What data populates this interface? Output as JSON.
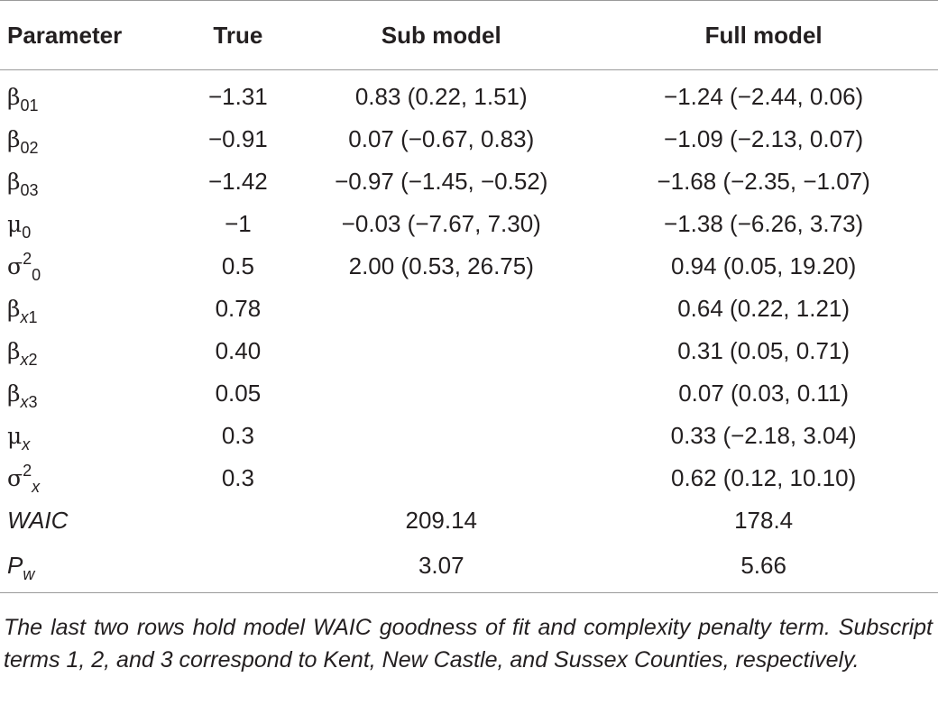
{
  "table": {
    "headers": {
      "parameter": "Parameter",
      "true": "True",
      "sub": "Sub model",
      "full": "Full model"
    },
    "rows": [
      {
        "sym": "β",
        "sup": "",
        "sub": "01",
        "sub_italic": false,
        "true": "−1.31",
        "submodel": "0.83 (0.22, 1.51)",
        "fullmodel": "−1.24 (−2.44, 0.06)"
      },
      {
        "sym": "β",
        "sup": "",
        "sub": "02",
        "sub_italic": false,
        "true": "−0.91",
        "submodel": "0.07 (−0.67, 0.83)",
        "fullmodel": "−1.09 (−2.13, 0.07)"
      },
      {
        "sym": "β",
        "sup": "",
        "sub": "03",
        "sub_italic": false,
        "true": "−1.42",
        "submodel": "−0.97 (−1.45, −0.52)",
        "fullmodel": "−1.68 (−2.35, −1.07)"
      },
      {
        "sym": "μ",
        "sup": "",
        "sub": "0",
        "sub_italic": false,
        "true": "−1",
        "submodel": "−0.03 (−7.67, 7.30)",
        "fullmodel": "−1.38 (−6.26, 3.73)"
      },
      {
        "sym": "σ",
        "sup": "2",
        "sub": "0",
        "sub_italic": false,
        "true": "0.5",
        "submodel": "2.00 (0.53, 26.75)",
        "fullmodel": "0.94 (0.05, 19.20)"
      },
      {
        "sym": "β",
        "sup": "",
        "sub_pre": "x",
        "sub": "1",
        "sub_italic": true,
        "true": "0.78",
        "submodel": "",
        "fullmodel": "0.64 (0.22, 1.21)"
      },
      {
        "sym": "β",
        "sup": "",
        "sub_pre": "x",
        "sub": "2",
        "sub_italic": true,
        "true": "0.40",
        "submodel": "",
        "fullmodel": "0.31 (0.05, 0.71)"
      },
      {
        "sym": "β",
        "sup": "",
        "sub_pre": "x",
        "sub": "3",
        "sub_italic": true,
        "true": "0.05",
        "submodel": "",
        "fullmodel": "0.07 (0.03, 0.11)"
      },
      {
        "sym": "μ",
        "sup": "",
        "sub_pre": "x",
        "sub": "",
        "sub_italic": true,
        "true": "0.3",
        "submodel": "",
        "fullmodel": "0.33 (−2.18, 3.04)"
      },
      {
        "sym": "σ",
        "sup": "2",
        "sub_pre": "x",
        "sub": "",
        "sub_italic": true,
        "true": "0.3",
        "submodel": "",
        "fullmodel": "0.62 (0.12, 10.10)"
      },
      {
        "text": "WAIC",
        "true": "",
        "submodel": "209.14",
        "fullmodel": "178.4"
      },
      {
        "text": "P",
        "text_sub": "w",
        "true": "",
        "submodel": "3.07",
        "fullmodel": "5.66"
      }
    ]
  },
  "footnote": "The last two rows hold model WAIC goodness of fit and complexity penalty term. Subscript terms 1, 2, and 3 correspond to Kent, New Castle, and Sussex Counties, respectively."
}
